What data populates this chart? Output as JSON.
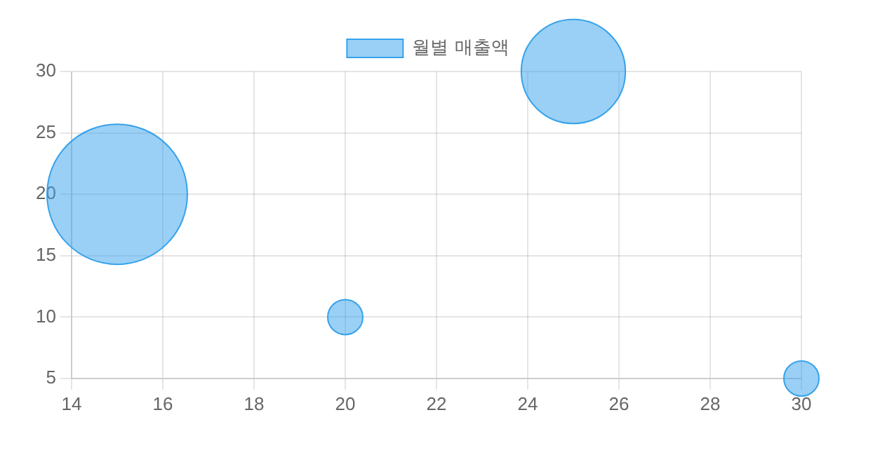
{
  "chart_data": {
    "type": "bubble",
    "legend": "top",
    "grid": true,
    "xlim": [
      14,
      30
    ],
    "xticks": [
      14,
      16,
      18,
      20,
      22,
      24,
      26,
      28,
      30
    ],
    "ylim": [
      5,
      30
    ],
    "yticks": [
      5,
      10,
      15,
      20,
      25,
      30
    ],
    "series": [
      {
        "name": "월별 매출액",
        "color": "#36a2eb",
        "x": [
          15,
          20,
          25,
          30
        ],
        "values": [
          20,
          10,
          30,
          5
        ],
        "sizes": [
          1,
          0.0625,
          0.55,
          0.0625
        ]
      }
    ]
  }
}
